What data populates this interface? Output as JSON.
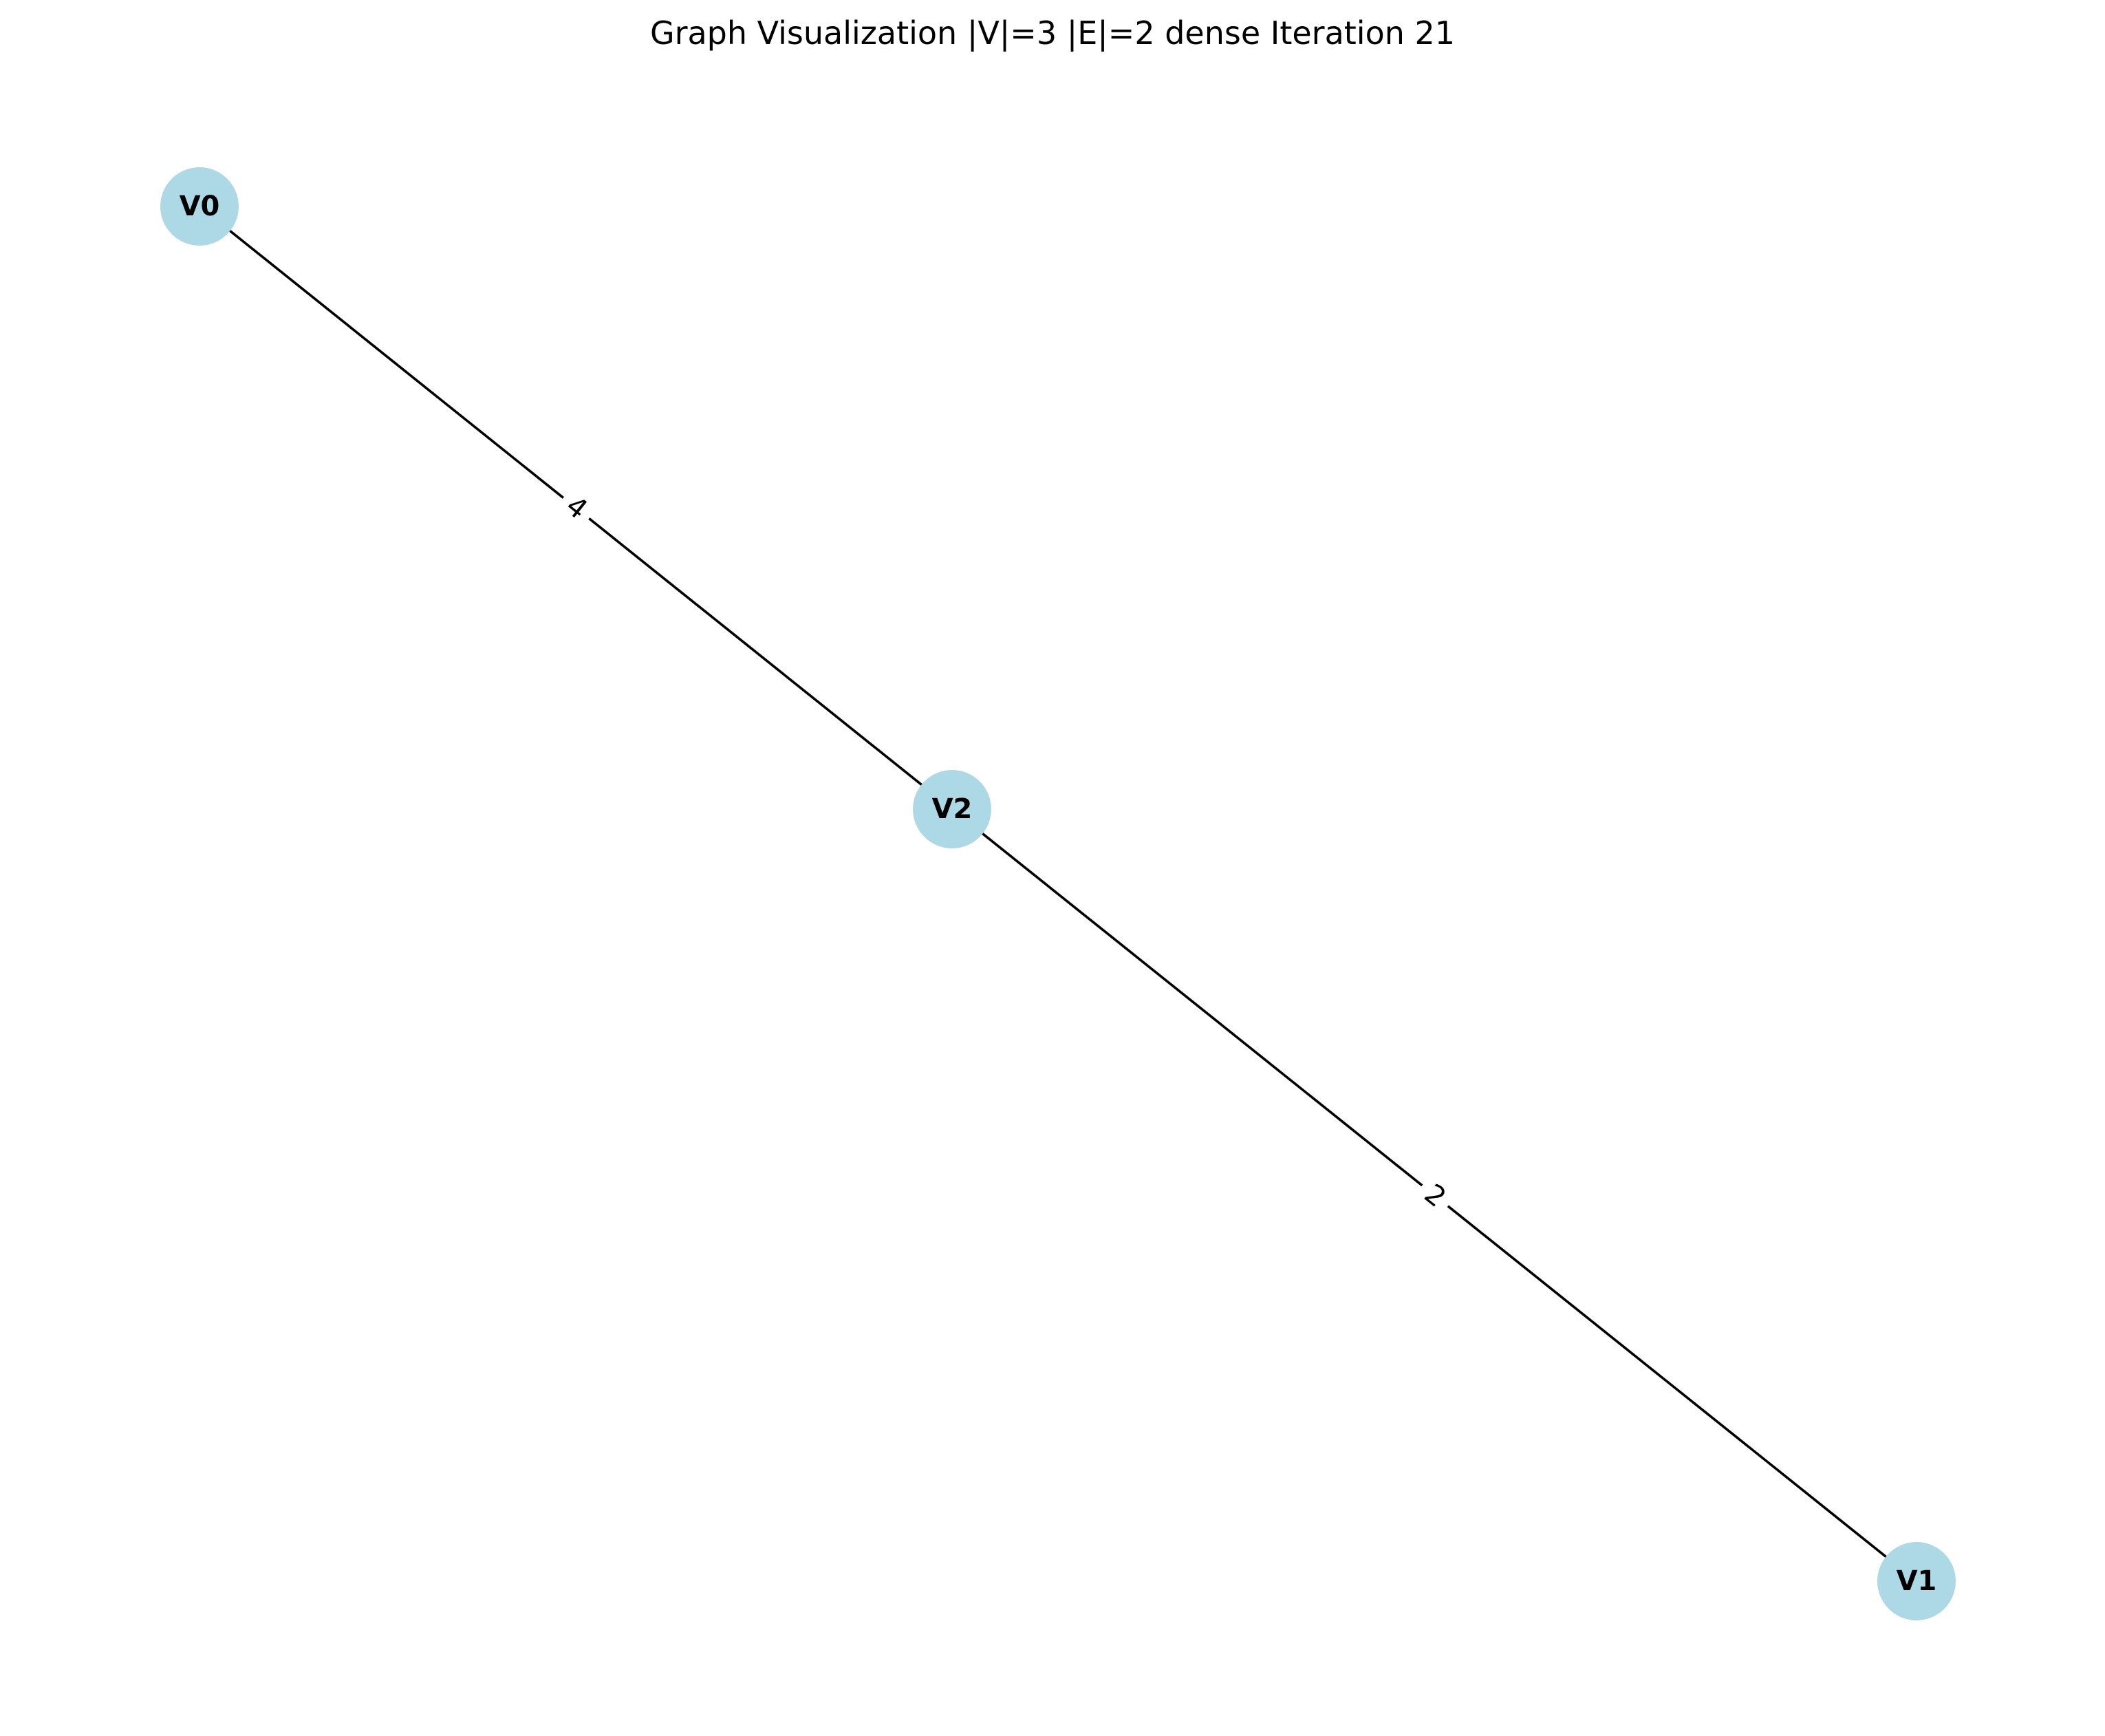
{
  "title": "Graph Visualization |V|=3 |E|=2 dense Iteration 21",
  "colors": {
    "node_fill": "#add8e6",
    "edge_stroke": "#000000",
    "text": "#000000",
    "background": "#ffffff"
  },
  "nodes": [
    {
      "id": "V0",
      "label": "V0"
    },
    {
      "id": "V1",
      "label": "V1"
    },
    {
      "id": "V2",
      "label": "V2"
    }
  ],
  "edges": [
    {
      "source": "V0",
      "target": "V2",
      "weight": "4"
    },
    {
      "source": "V2",
      "target": "V1",
      "weight": "2"
    }
  ]
}
